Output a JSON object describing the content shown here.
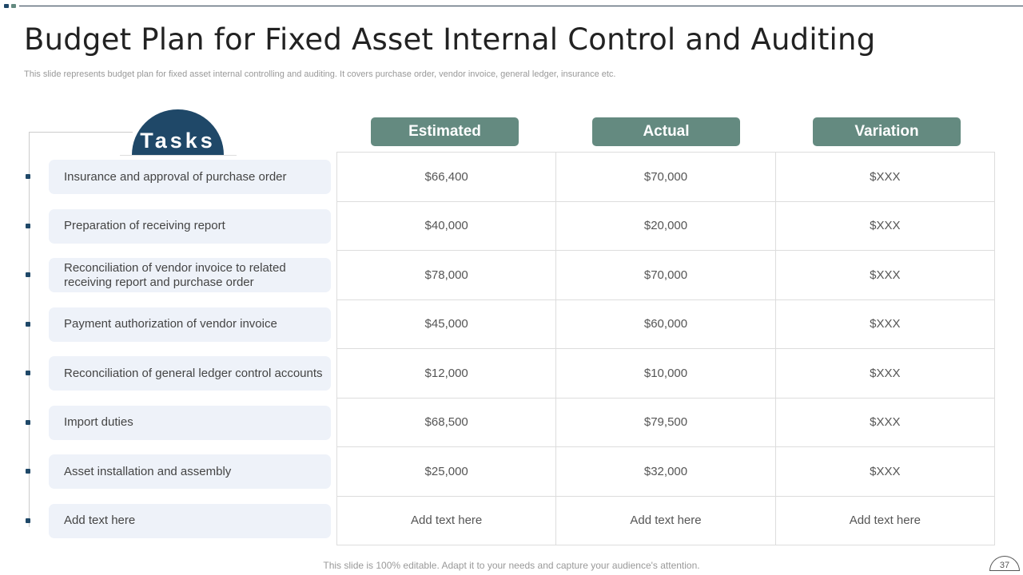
{
  "colors": {
    "dark_blue": "#1f4868",
    "teal": "#648a80",
    "task_bg": "#eef2f9"
  },
  "title": "Budget Plan for Fixed Asset Internal Control and Auditing",
  "subtitle": "This slide represents budget plan for fixed  asset internal controlling and auditing. It covers purchase order, vendor invoice, general ledger, insurance etc.",
  "tasks_label": "Tasks",
  "headers": [
    "Estimated",
    "Actual",
    "Variation"
  ],
  "rows": [
    {
      "task": "Insurance and approval of purchase order",
      "values": [
        "$66,400",
        "$70,000",
        "$XXX"
      ]
    },
    {
      "task": "Preparation of receiving report",
      "values": [
        "$40,000",
        "$20,000",
        "$XXX"
      ]
    },
    {
      "task": "Reconciliation of vendor invoice to related receiving report and purchase order",
      "values": [
        "$78,000",
        "$70,000",
        "$XXX"
      ]
    },
    {
      "task": "Payment authorization of vendor invoice",
      "values": [
        "$45,000",
        "$60,000",
        "$XXX"
      ]
    },
    {
      "task": "Reconciliation of general ledger control accounts",
      "values": [
        "$12,000",
        "$10,000",
        "$XXX"
      ]
    },
    {
      "task": "Import duties",
      "values": [
        "$68,500",
        "$79,500",
        "$XXX"
      ]
    },
    {
      "task": "Asset installation and assembly",
      "values": [
        "$25,000",
        "$32,000",
        "$XXX"
      ]
    },
    {
      "task": "Add text here",
      "values": [
        "Add text here",
        "Add text here",
        "Add text here"
      ]
    }
  ],
  "footer": "This slide is 100% editable. Adapt it to your needs and capture your audience's attention.",
  "page_number": "37"
}
